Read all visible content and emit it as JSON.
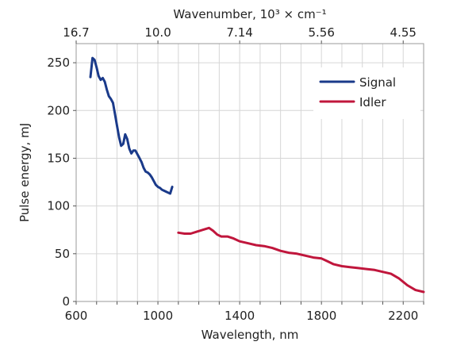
{
  "chart_data": {
    "type": "line",
    "xlabel": "Wavelength, nm",
    "ylabel": "Pulse energy, mJ",
    "top_xlabel": "Wavenumber, 10³ × cm⁻¹",
    "xlim": [
      600,
      2300
    ],
    "ylim": [
      0,
      270
    ],
    "x_ticks": [
      600,
      1000,
      1400,
      1800,
      2200
    ],
    "y_ticks": [
      0,
      50,
      100,
      150,
      200,
      250
    ],
    "top_ticks": [
      {
        "label": "16.7",
        "wavelength": 600
      },
      {
        "label": "10.0",
        "wavelength": 1000
      },
      {
        "label": "7.14",
        "wavelength": 1400
      },
      {
        "label": "5.56",
        "wavelength": 1800
      },
      {
        "label": "4.55",
        "wavelength": 2200
      }
    ],
    "grid": true,
    "legend_position": "top-right",
    "series": [
      {
        "name": "Signal",
        "color": "#1a3a8a",
        "x": [
          670,
          680,
          690,
          700,
          710,
          720,
          730,
          740,
          750,
          760,
          770,
          780,
          790,
          800,
          810,
          820,
          830,
          840,
          850,
          860,
          870,
          880,
          890,
          900,
          910,
          920,
          930,
          940,
          950,
          960,
          970,
          980,
          990,
          1000,
          1010,
          1020,
          1030,
          1040,
          1050,
          1060,
          1070
        ],
        "y": [
          235,
          255,
          253,
          245,
          236,
          232,
          234,
          230,
          222,
          215,
          212,
          208,
          196,
          184,
          172,
          163,
          165,
          175,
          170,
          160,
          155,
          158,
          158,
          154,
          150,
          146,
          140,
          136,
          135,
          133,
          130,
          126,
          122,
          120,
          119,
          117,
          116,
          115,
          114,
          113,
          120
        ]
      },
      {
        "name": "Idler",
        "color": "#c0163c",
        "x": [
          1100,
          1130,
          1160,
          1190,
          1220,
          1250,
          1270,
          1290,
          1310,
          1340,
          1370,
          1400,
          1440,
          1480,
          1520,
          1560,
          1600,
          1640,
          1680,
          1720,
          1760,
          1800,
          1830,
          1860,
          1900,
          1940,
          1980,
          2020,
          2060,
          2100,
          2140,
          2180,
          2220,
          2260,
          2300
        ],
        "y": [
          72,
          71,
          71,
          73,
          75,
          77,
          74,
          70,
          68,
          68,
          66,
          63,
          61,
          59,
          58,
          56,
          53,
          51,
          50,
          48,
          46,
          45,
          42,
          39,
          37,
          36,
          35,
          34,
          33,
          31,
          29,
          24,
          17,
          12,
          10
        ]
      }
    ]
  }
}
